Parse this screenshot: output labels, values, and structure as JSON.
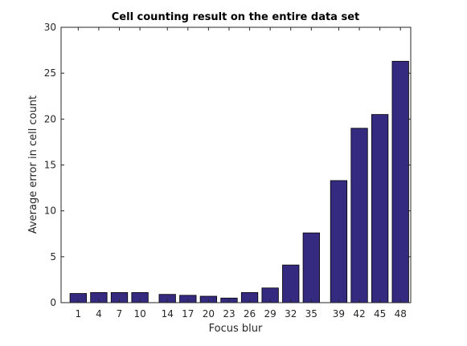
{
  "chart_data": {
    "type": "bar",
    "title": "Cell counting result on the entire data set",
    "xlabel": "Focus blur",
    "ylabel": "Average error in cell count",
    "categories": [
      "1",
      "4",
      "7",
      "10",
      "14",
      "17",
      "20",
      "23",
      "26",
      "29",
      "32",
      "35",
      "39",
      "42",
      "45",
      "48"
    ],
    "values": [
      1.0,
      1.1,
      1.1,
      1.1,
      0.9,
      0.8,
      0.7,
      0.5,
      1.1,
      1.6,
      4.1,
      7.6,
      13.3,
      19.0,
      20.5,
      26.3
    ],
    "ylim": [
      0,
      30
    ],
    "yticks": [
      0,
      5,
      10,
      15,
      20,
      25,
      30
    ],
    "xlim": [
      -1.5,
      49.5
    ],
    "grid": false,
    "bar_color": "#342a7f"
  }
}
